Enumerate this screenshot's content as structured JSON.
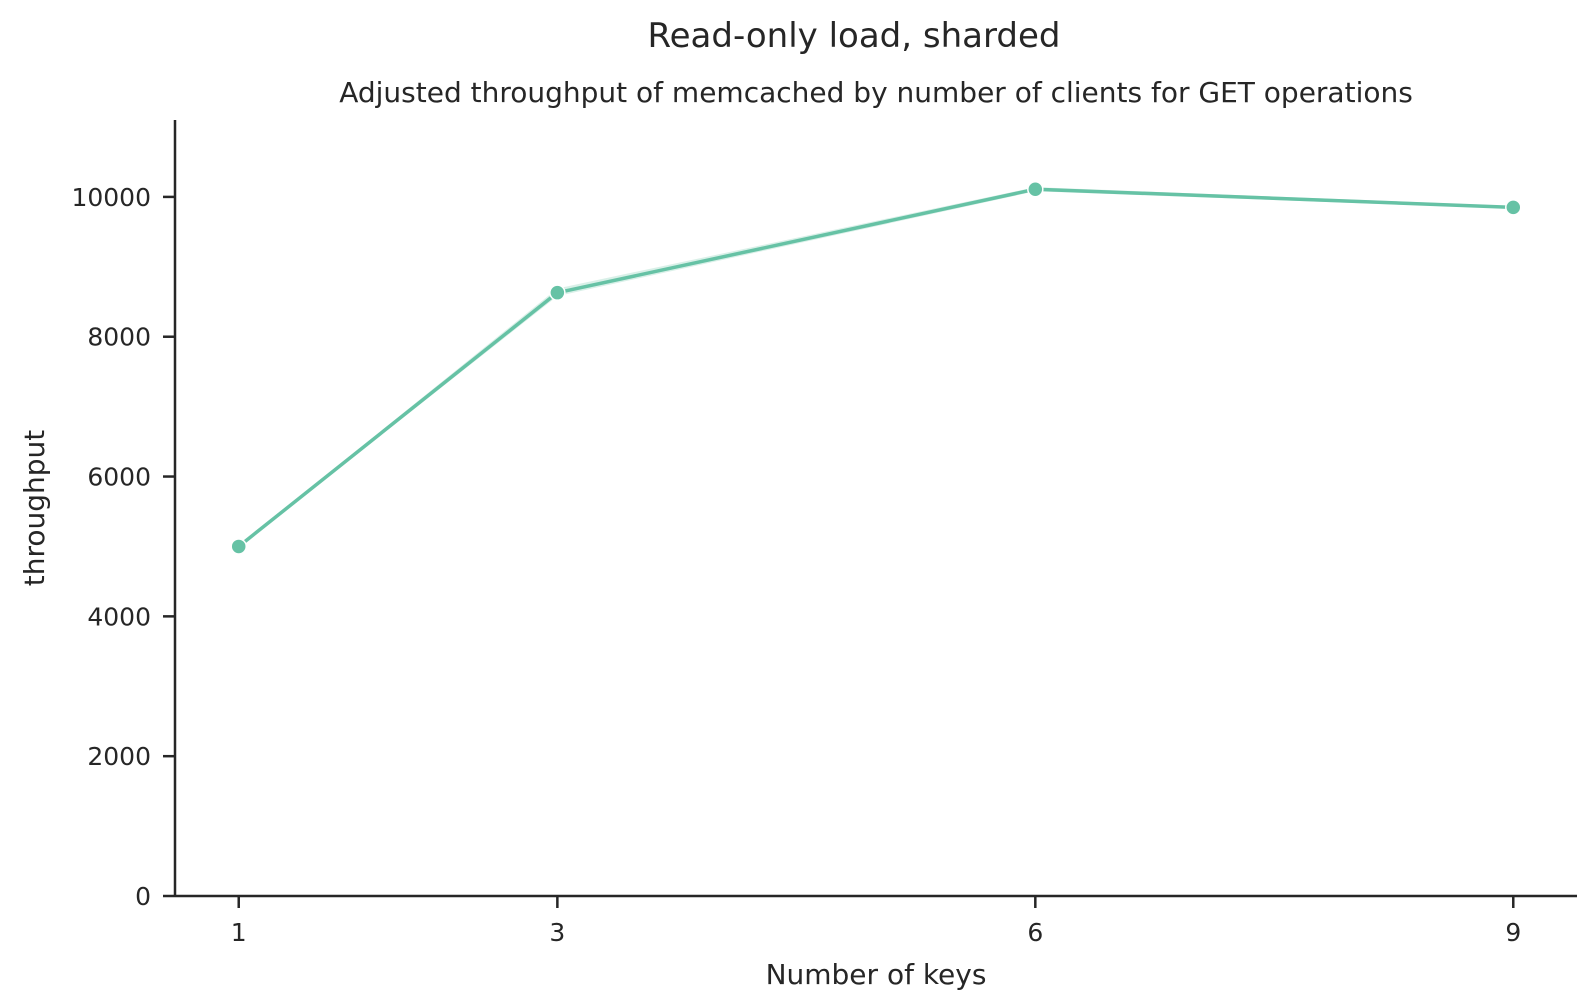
{
  "chart_data": {
    "type": "line",
    "suptitle": "Read-only load, sharded",
    "title": "Adjusted throughput of memcached by number of clients for GET operations",
    "xlabel": "Number of keys",
    "ylabel": "throughput",
    "x": [
      1,
      3,
      6,
      9
    ],
    "x_tick_labels": [
      "1",
      "3",
      "6",
      "9"
    ],
    "y_ticks": [
      0,
      2000,
      4000,
      6000,
      8000,
      10000
    ],
    "y_tick_labels": [
      "0",
      "2000",
      "4000",
      "6000",
      "8000",
      "10000"
    ],
    "xlim": [
      0.6,
      9.4
    ],
    "ylim": [
      0,
      11100
    ],
    "series": [
      {
        "values": [
          5000,
          8630,
          10110,
          9850
        ],
        "ci_low": [
          4990,
          8580,
          10080,
          9830
        ],
        "ci_high": [
          5010,
          8690,
          10140,
          9870
        ],
        "color": "#66c2a5"
      }
    ],
    "grid": false,
    "legend": "none",
    "spines": "left-bottom"
  }
}
